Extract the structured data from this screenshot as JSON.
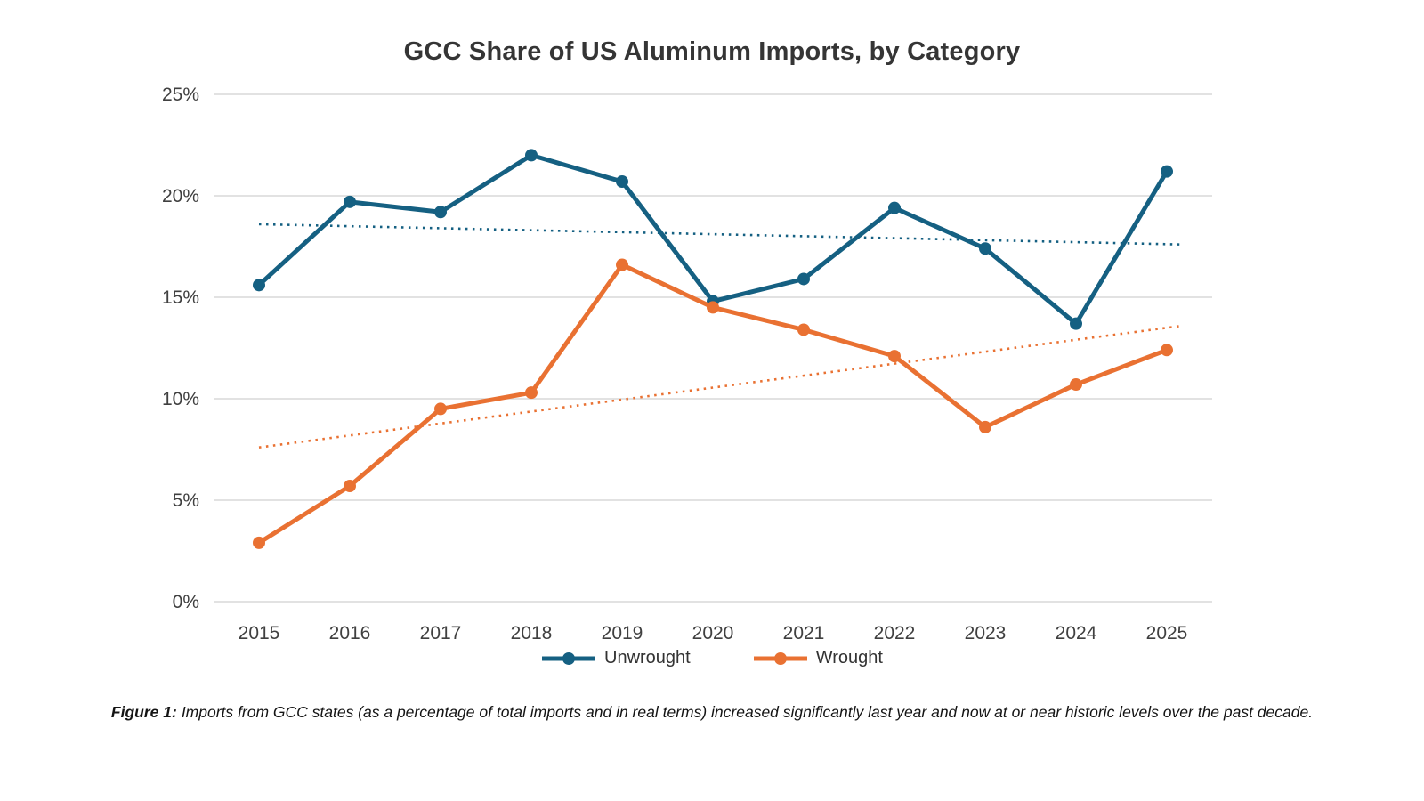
{
  "chart_data": {
    "type": "line",
    "title": "GCC Share of US Aluminum Imports, by Category",
    "categories": [
      "2015",
      "2016",
      "2017",
      "2018",
      "2019",
      "2020",
      "2021",
      "2022",
      "2023",
      "2024",
      "2025"
    ],
    "series": [
      {
        "name": "Unwrought",
        "color": "#156082",
        "values": [
          15.6,
          19.7,
          19.2,
          22.0,
          20.7,
          14.8,
          15.9,
          19.4,
          17.4,
          13.7,
          21.2
        ],
        "trend": {
          "start": 18.6,
          "end": 17.6,
          "style": "dotted"
        }
      },
      {
        "name": "Wrought",
        "color": "#E97132",
        "values": [
          2.9,
          5.7,
          9.5,
          10.3,
          16.6,
          14.5,
          13.4,
          12.1,
          8.6,
          10.7,
          12.4
        ],
        "trend": {
          "start": 7.6,
          "end": 13.6,
          "style": "dotted"
        }
      }
    ],
    "y_axis": {
      "min": 0,
      "max": 25,
      "tick_step": 5,
      "tick_labels": [
        "0%",
        "5%",
        "10%",
        "15%",
        "20%",
        "25%"
      ]
    },
    "ylim": [
      0,
      25
    ],
    "grid": true,
    "legend_position": "bottom",
    "colors": {
      "gridline": "#d9d9d9",
      "axis_text": "#404040"
    }
  },
  "caption": {
    "label": "Figure 1:",
    "text": "Imports from GCC states (as a percentage of total imports and in real terms) increased significantly last year and now at or near historic levels over the past decade."
  }
}
